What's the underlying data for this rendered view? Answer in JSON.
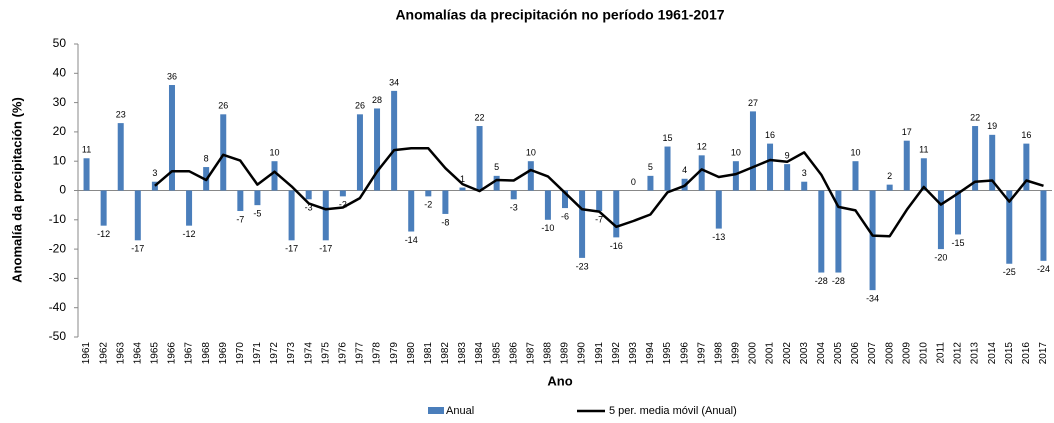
{
  "chart_data": {
    "type": "bar_line",
    "title": "Anomalías da precipitación no período 1961-2017",
    "x_label": "Ano",
    "y_label": "Anomalía da precipitación (%)",
    "categories": [
      "1961",
      "1962",
      "1963",
      "1964",
      "1965",
      "1966",
      "1967",
      "1968",
      "1969",
      "1970",
      "1971",
      "1972",
      "1973",
      "1974",
      "1975",
      "1976",
      "1977",
      "1978",
      "1979",
      "1980",
      "1981",
      "1982",
      "1983",
      "1984",
      "1985",
      "1986",
      "1987",
      "1988",
      "1989",
      "1990",
      "1991",
      "1992",
      "1993",
      "1994",
      "1995",
      "1996",
      "1997",
      "1998",
      "1999",
      "2000",
      "2001",
      "2002",
      "2003",
      "2004",
      "2005",
      "2006",
      "2007",
      "2008",
      "2009",
      "2010",
      "2011",
      "2012",
      "2013",
      "2014",
      "2015",
      "2016",
      "2017"
    ],
    "series": [
      {
        "name": "Anual",
        "kind": "bar",
        "color": "#4a7ebb",
        "values": [
          11,
          -12,
          23,
          -17,
          3,
          36,
          -12,
          8,
          26,
          -7,
          -5,
          10,
          -17,
          -3,
          -17,
          -2,
          26,
          28,
          34,
          -14,
          -2,
          -8,
          1,
          22,
          5,
          -3,
          10,
          -10,
          -6,
          -23,
          -7,
          -16,
          0,
          5,
          15,
          4,
          12,
          -13,
          10,
          27,
          16,
          9,
          3,
          -28,
          -28,
          10,
          -34,
          2,
          17,
          11,
          -20,
          -15,
          22,
          19,
          -25,
          16,
          -24
        ]
      },
      {
        "name": "5 per. media móvil (Anual)",
        "kind": "line",
        "color": "#000000",
        "values": [
          null,
          null,
          null,
          null,
          1.6,
          6.6,
          6.6,
          3.6,
          12.2,
          10.2,
          2,
          6.4,
          1.4,
          -4.4,
          -6.4,
          -5.8,
          -2.6,
          6.4,
          13.8,
          14.4,
          14.4,
          7.6,
          2.2,
          -0.2,
          3.6,
          3.4,
          7,
          4.8,
          -0.8,
          -6.4,
          -7.2,
          -12.4,
          -10.4,
          -8.2,
          -0.6,
          1.6,
          7.2,
          4.6,
          5.6,
          8,
          10.4,
          9.8,
          13,
          5.4,
          -5.6,
          -6.8,
          -15.4,
          -15.6,
          -6.6,
          1.2,
          -4.8,
          -1,
          3,
          3.4,
          -3.8,
          3.4,
          1.6
        ]
      }
    ],
    "ylim": [
      -50,
      50
    ],
    "yticks": [
      -50,
      -40,
      -30,
      -20,
      -10,
      0,
      10,
      20,
      30,
      40,
      50
    ],
    "grid": false,
    "legend": "bottom"
  }
}
